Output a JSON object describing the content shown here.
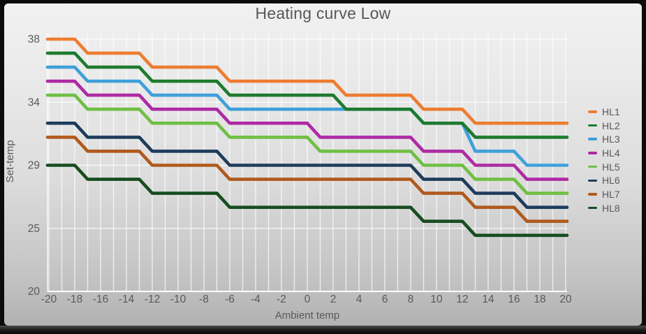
{
  "window": {
    "frame_color": "#0c0c0c",
    "card_gradient_top": "#f1f1f1",
    "card_gradient_bottom": "#b2b2b2",
    "gridline_color": "#ffffff",
    "text_color": "#595959"
  },
  "chart_data": {
    "type": "line",
    "title": "Heating curve Low",
    "xlabel": "Ambient temp",
    "ylabel": "Set-temp",
    "legend_position": "right",
    "grid": true,
    "x_axis": {
      "min": -20,
      "max": 20,
      "gridline_step": 1,
      "tick_labels": [
        "-20",
        "-18",
        "-16",
        "-14",
        "-12",
        "-10",
        "-8",
        "-6",
        "-4",
        "-2",
        "0",
        "2",
        "4",
        "6",
        "8",
        "10",
        "12",
        "14",
        "16",
        "18",
        "20"
      ],
      "tick_values": [
        -20,
        -18,
        -16,
        -14,
        -12,
        -10,
        -8,
        -6,
        -4,
        -2,
        0,
        2,
        4,
        6,
        8,
        10,
        12,
        14,
        16,
        18,
        20
      ]
    },
    "y_axis": {
      "min": 20,
      "max": 38,
      "tick_labels": [
        "38",
        "34",
        "29",
        "25",
        "20"
      ],
      "tick_values": [
        38,
        33.5,
        29,
        24.5,
        20
      ]
    },
    "series": [
      {
        "name": "HL1",
        "color": "#ED7D31",
        "points": [
          [
            -20,
            38
          ],
          [
            -18,
            38
          ],
          [
            -17,
            37
          ],
          [
            -13,
            37
          ],
          [
            -12,
            36
          ],
          [
            -7,
            36
          ],
          [
            -6,
            35
          ],
          [
            2,
            35
          ],
          [
            3,
            34
          ],
          [
            8,
            34
          ],
          [
            9,
            33
          ],
          [
            12,
            33
          ],
          [
            13,
            32
          ],
          [
            20,
            32
          ]
        ]
      },
      {
        "name": "HL2",
        "color": "#1E7B2F",
        "points": [
          [
            -20,
            37
          ],
          [
            -18,
            37
          ],
          [
            -17,
            36
          ],
          [
            -13,
            36
          ],
          [
            -12,
            35
          ],
          [
            -7,
            35
          ],
          [
            -6,
            34
          ],
          [
            2,
            34
          ],
          [
            3,
            33
          ],
          [
            8,
            33
          ],
          [
            9,
            32
          ],
          [
            12,
            32
          ],
          [
            13,
            31
          ],
          [
            20,
            31
          ]
        ]
      },
      {
        "name": "HL3",
        "color": "#3FA0DA",
        "points": [
          [
            -20,
            36
          ],
          [
            -18,
            36
          ],
          [
            -17,
            35
          ],
          [
            -13,
            35
          ],
          [
            -12,
            34
          ],
          [
            -7,
            34
          ],
          [
            -6,
            33
          ],
          [
            8,
            33
          ],
          [
            9,
            32
          ],
          [
            12,
            32
          ],
          [
            13,
            30
          ],
          [
            16,
            30
          ],
          [
            17,
            29
          ],
          [
            20,
            29
          ]
        ]
      },
      {
        "name": "HL4",
        "color": "#AE2BA4",
        "points": [
          [
            -20,
            35
          ],
          [
            -18,
            35
          ],
          [
            -17,
            34
          ],
          [
            -13,
            34
          ],
          [
            -12,
            33
          ],
          [
            -7,
            33
          ],
          [
            -6,
            32
          ],
          [
            0,
            32
          ],
          [
            1,
            31
          ],
          [
            8,
            31
          ],
          [
            9,
            30
          ],
          [
            12,
            30
          ],
          [
            13,
            29
          ],
          [
            16,
            29
          ],
          [
            17,
            28
          ],
          [
            20,
            28
          ]
        ]
      },
      {
        "name": "HL5",
        "color": "#6FBF44",
        "points": [
          [
            -20,
            34
          ],
          [
            -18,
            34
          ],
          [
            -17,
            33
          ],
          [
            -13,
            33
          ],
          [
            -12,
            32
          ],
          [
            -7,
            32
          ],
          [
            -6,
            31
          ],
          [
            0,
            31
          ],
          [
            1,
            30
          ],
          [
            8,
            30
          ],
          [
            9,
            29
          ],
          [
            12,
            29
          ],
          [
            13,
            28
          ],
          [
            16,
            28
          ],
          [
            17,
            27
          ],
          [
            20,
            27
          ]
        ]
      },
      {
        "name": "HL6",
        "color": "#1E3C5C",
        "points": [
          [
            -20,
            32
          ],
          [
            -18,
            32
          ],
          [
            -17,
            31
          ],
          [
            -13,
            31
          ],
          [
            -12,
            30
          ],
          [
            -7,
            30
          ],
          [
            -6,
            29
          ],
          [
            8,
            29
          ],
          [
            9,
            28
          ],
          [
            12,
            28
          ],
          [
            13,
            27
          ],
          [
            16,
            27
          ],
          [
            17,
            26
          ],
          [
            20,
            26
          ]
        ]
      },
      {
        "name": "HL7",
        "color": "#B05A1D",
        "points": [
          [
            -20,
            31
          ],
          [
            -18,
            31
          ],
          [
            -17,
            30
          ],
          [
            -13,
            30
          ],
          [
            -12,
            29
          ],
          [
            -7,
            29
          ],
          [
            -6,
            28
          ],
          [
            8,
            28
          ],
          [
            9,
            27
          ],
          [
            12,
            27
          ],
          [
            13,
            26
          ],
          [
            16,
            26
          ],
          [
            17,
            25
          ],
          [
            20,
            25
          ]
        ]
      },
      {
        "name": "HL8",
        "color": "#174D20",
        "points": [
          [
            -20,
            29
          ],
          [
            -18,
            29
          ],
          [
            -17,
            28
          ],
          [
            -13,
            28
          ],
          [
            -12,
            27
          ],
          [
            -7,
            27
          ],
          [
            -6,
            26
          ],
          [
            8,
            26
          ],
          [
            9,
            25
          ],
          [
            12,
            25
          ],
          [
            13,
            24
          ],
          [
            20,
            24
          ]
        ]
      }
    ]
  }
}
